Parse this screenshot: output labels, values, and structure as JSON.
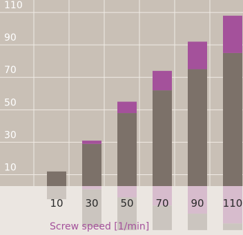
{
  "chart_data": {
    "type": "bar",
    "stacked": true,
    "categories": [
      "10",
      "30",
      "50",
      "70",
      "90",
      "110"
    ],
    "series": [
      {
        "values": [
          12,
          29,
          48,
          62,
          75,
          85
        ]
      },
      {
        "values": [
          0,
          2,
          7,
          12,
          17,
          23
        ]
      }
    ],
    "y_ticks": [
      "10",
      "30",
      "50",
      "70",
      "90",
      "110"
    ],
    "ylim": [
      3,
      113
    ],
    "xlabel": "Screw speed [1/min]",
    "grid": true,
    "colors": {
      "background": "#c9c0b6",
      "bottom_band": "#ebe6e1",
      "gridline": "#f0ebe5",
      "base": "#7c7169",
      "top": "#a4519b",
      "xlabel": "#a4519b"
    }
  }
}
